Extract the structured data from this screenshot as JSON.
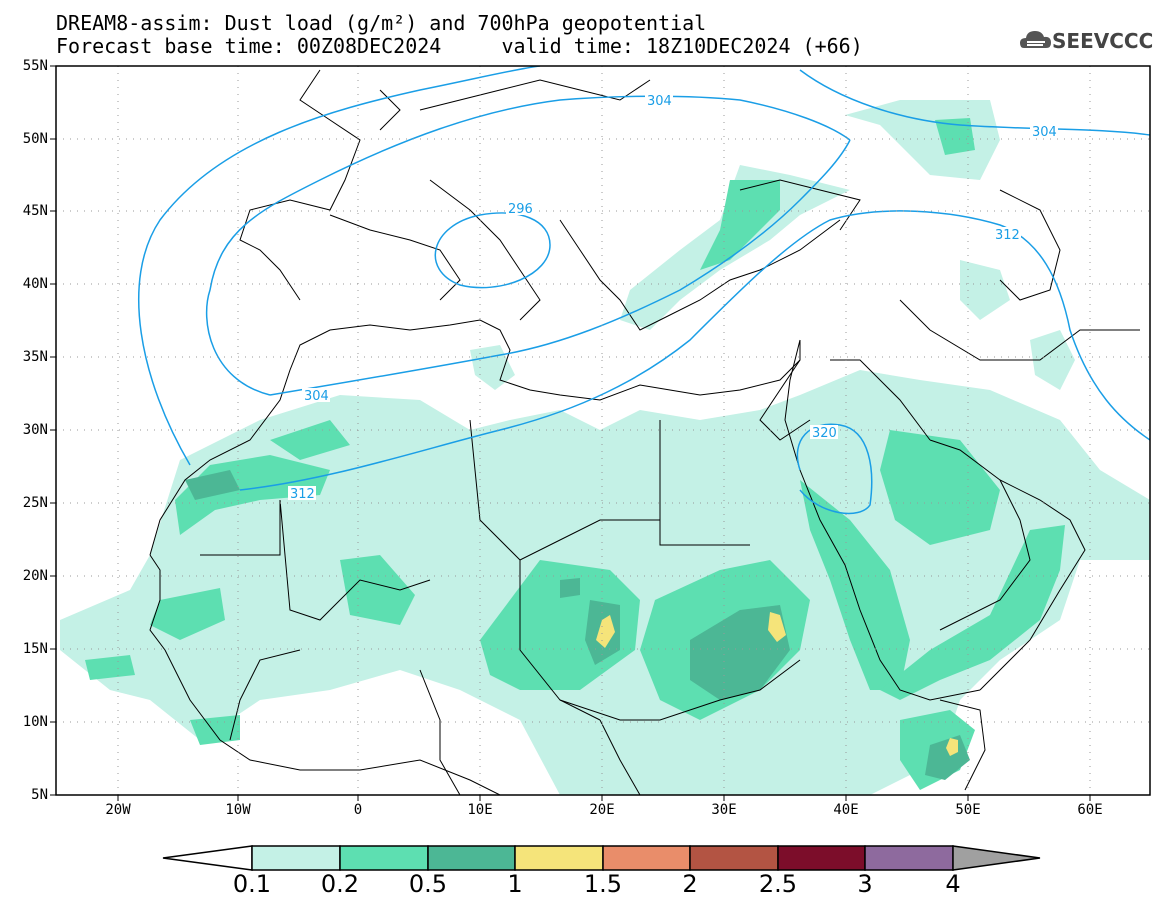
{
  "header": {
    "title_line1": "DREAM8-assim: Dust load (g/m²) and 700hPa geopotential",
    "title_line2": "Forecast base time: 00Z08DEC2024     valid time: 18Z10DEC2024 (+66)"
  },
  "logo": {
    "text": "SEEVCCC",
    "icon": "cloud-icon"
  },
  "map": {
    "lat_labels": [
      "55N",
      "50N",
      "45N",
      "40N",
      "35N",
      "30N",
      "25N",
      "20N",
      "15N",
      "10N",
      "5N"
    ],
    "lon_labels": [
      "20W",
      "10W",
      "0",
      "10E",
      "20E",
      "30E",
      "40E",
      "50E",
      "60E"
    ],
    "contour_labels": [
      "304",
      "304",
      "296",
      "312",
      "304",
      "312",
      "320"
    ]
  },
  "colorbar": {
    "labels": [
      "0.1",
      "0.2",
      "0.5",
      "1",
      "1.5",
      "2",
      "2.5",
      "3",
      "4"
    ],
    "colors": [
      "#c4f1e6",
      "#5ddfb1",
      "#4cb795",
      "#f5e47a",
      "#e98d6a",
      "#b35443",
      "#7c0d2a",
      "#8e6a9e",
      "#a0a0a0"
    ]
  },
  "colors": {
    "dust_01": "#c4f1e6",
    "dust_02": "#5ddfb1",
    "dust_05": "#4cb795",
    "dust_1": "#f5e47a",
    "contour": "#1a9ee6"
  }
}
